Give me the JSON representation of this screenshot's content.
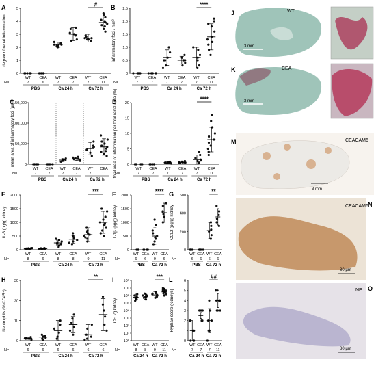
{
  "figure": {
    "image_panels": [
      {
        "letter": "J",
        "label": "WT",
        "scale": "3 mm"
      },
      {
        "letter": "K",
        "label": "CEA",
        "scale": "3 mm"
      },
      {
        "letter": "M",
        "label": "CEACAM6",
        "scale": "3 mm"
      },
      {
        "letter": "N",
        "label": "CEACAM6",
        "scale": "80 µm"
      },
      {
        "letter": "O",
        "label": "NE",
        "scale": "80 µm"
      }
    ]
  },
  "chart_data": [
    {
      "letter": "A",
      "type": "scatter",
      "ylabel": "degree of renal inflammation",
      "ylim": [
        0,
        5
      ],
      "yticks": [
        "0",
        "1",
        "2",
        "3",
        "4",
        "5"
      ],
      "ticklabels": [
        "WT",
        "CEA",
        "WT",
        "CEA",
        "WT",
        "CEA"
      ],
      "groups": [
        "PBS",
        "Ca 24 h",
        "Ca 72 h"
      ],
      "n": [
        "7",
        "6",
        "7",
        "7",
        "7",
        "11"
      ],
      "n_prefix": "N=",
      "means": [
        0,
        0,
        2.2,
        3,
        2.7,
        3.9
      ],
      "errors": [
        0,
        0,
        0.2,
        0.5,
        0.3,
        0.5
      ],
      "points": [
        [
          0,
          0,
          0,
          0,
          0,
          0,
          0
        ],
        [
          0,
          0,
          0,
          0,
          0,
          0
        ],
        [
          2.0,
          2.1,
          2.2,
          2.2,
          2.3,
          2.4,
          2.1
        ],
        [
          2.5,
          2.6,
          3.0,
          3.1,
          3.4,
          3.5,
          2.9
        ],
        [
          2.5,
          2.6,
          2.7,
          2.8,
          2.9,
          2.7,
          2.6
        ],
        [
          3.2,
          3.4,
          3.6,
          3.8,
          4.0,
          4.1,
          4.3,
          4.5,
          3.7,
          3.9,
          4.6
        ]
      ],
      "sig": [
        {
          "label": "#",
          "from": 4,
          "to": 5
        }
      ]
    },
    {
      "letter": "B",
      "type": "scatter",
      "ylabel": "inflammatory foci / mm²",
      "ylim": [
        0,
        2.5
      ],
      "yticks": [
        "0",
        "0.5",
        "1.0",
        "1.5",
        "2.0",
        "2.5"
      ],
      "ticklabels": [
        "WT",
        "CEA",
        "WT",
        "CEA",
        "WT",
        "CEA"
      ],
      "groups": [
        "PBS",
        "Ca 24 h",
        "Ca 72 h"
      ],
      "n": [
        "7",
        "7",
        "7",
        "7",
        "7",
        "11"
      ],
      "n_prefix": "N=",
      "means": [
        0,
        0,
        0.6,
        0.5,
        0.6,
        1.4
      ],
      "errors": [
        0,
        0,
        0.3,
        0.15,
        0.4,
        0.5
      ],
      "points": [
        [
          0,
          0,
          0,
          0,
          0,
          0,
          0
        ],
        [
          0,
          0,
          0,
          0,
          0,
          0,
          0
        ],
        [
          0.2,
          0.3,
          0.5,
          0.6,
          0.8,
          1.0,
          0.5
        ],
        [
          0.3,
          0.4,
          0.5,
          0.5,
          0.6,
          0.7,
          0.5
        ],
        [
          0.2,
          0.3,
          0.5,
          0.6,
          0.7,
          0.9,
          1.0
        ],
        [
          0.7,
          0.9,
          1.1,
          1.3,
          1.4,
          1.6,
          1.8,
          1.9,
          2.0,
          2.1,
          1.2
        ]
      ],
      "sig": [
        {
          "label": "****",
          "from": 4,
          "to": 5
        }
      ]
    },
    {
      "letter": "C",
      "type": "scatter",
      "ylabel": "mean area of inflammatory foci (µm²)",
      "ylim": [
        0,
        150000
      ],
      "yticks": [
        "0",
        "50,000",
        "100,000",
        "150,000"
      ],
      "ticklabels": [
        "WT",
        "CEA",
        "WT",
        "CEA",
        "WT",
        "CEA"
      ],
      "groups": [
        "PBS",
        "Ca 24 h",
        "Ca 72 h"
      ],
      "n": [
        "7",
        "7",
        "7",
        "7",
        "7",
        "11"
      ],
      "n_prefix": "N=",
      "means": [
        0,
        0,
        10000,
        13000,
        38000,
        42000
      ],
      "errors": [
        0,
        0,
        3000,
        4000,
        15000,
        20000
      ],
      "points": [
        [
          0,
          0,
          0,
          0,
          0,
          0,
          0
        ],
        [
          0,
          0,
          0,
          0,
          0,
          0,
          0
        ],
        [
          6000,
          8000,
          9000,
          10000,
          12000,
          14000,
          11000
        ],
        [
          8000,
          10000,
          12000,
          14000,
          16000,
          18000,
          13000
        ],
        [
          20000,
          28000,
          35000,
          40000,
          45000,
          55000,
          42000
        ],
        [
          20000,
          25000,
          30000,
          38000,
          42000,
          50000,
          55000,
          60000,
          70000,
          32000,
          45000
        ]
      ],
      "sig": []
    },
    {
      "letter": "D",
      "type": "scatter",
      "ylabel": "total area of inflammation per total renal area (%)",
      "ylim": [
        0,
        20
      ],
      "yticks": [
        "0",
        "5",
        "10",
        "15",
        "20"
      ],
      "ticklabels": [
        "WT",
        "CEA",
        "WT",
        "CEA",
        "WT",
        "CEA"
      ],
      "groups": [
        "PBS",
        "Ca 24 h",
        "Ca 72 h"
      ],
      "n": [
        "7",
        "7",
        "7",
        "7",
        "7",
        "11"
      ],
      "n_prefix": "N=",
      "means": [
        0,
        0,
        0.5,
        0.6,
        1.5,
        8
      ],
      "errors": [
        0,
        0,
        0.3,
        0.4,
        1.5,
        4
      ],
      "points": [
        [
          0,
          0,
          0,
          0,
          0,
          0,
          0
        ],
        [
          0,
          0,
          0,
          0,
          0,
          0,
          0
        ],
        [
          0.2,
          0.3,
          0.5,
          0.6,
          0.8,
          0.4,
          0.5
        ],
        [
          0.3,
          0.5,
          0.6,
          0.8,
          1.0,
          0.4,
          0.6
        ],
        [
          0.5,
          1.0,
          1.2,
          1.5,
          2.0,
          3.0,
          4.0
        ],
        [
          3,
          4,
          5,
          6,
          7,
          8,
          9,
          10,
          12,
          14,
          16
        ]
      ],
      "sig": [
        {
          "label": "****",
          "from": 4,
          "to": 5
        }
      ]
    },
    {
      "letter": "E",
      "type": "scatter",
      "ylabel": "IL-6 (pg/g) kidney",
      "ylim": [
        0,
        2000
      ],
      "yticks": [
        "0",
        "500",
        "1000",
        "1500",
        "2000"
      ],
      "ticklabels": [
        "WT",
        "CEA",
        "WT",
        "CEA",
        "WT",
        "CEA"
      ],
      "groups": [
        "PBS",
        "Ca 24 h",
        "Ca 72 h"
      ],
      "n": [
        "8",
        "6",
        "8",
        "8",
        "9",
        "11"
      ],
      "n_prefix": "N=",
      "means": [
        40,
        40,
        250,
        380,
        550,
        1000
      ],
      "errors": [
        20,
        20,
        100,
        150,
        250,
        400
      ],
      "points": [
        [
          20,
          30,
          40,
          50,
          60,
          30,
          40,
          50
        ],
        [
          20,
          30,
          40,
          50,
          60,
          40
        ],
        [
          100,
          150,
          200,
          250,
          300,
          350,
          400,
          220
        ],
        [
          200,
          250,
          300,
          350,
          400,
          450,
          500,
          600
        ],
        [
          300,
          400,
          450,
          500,
          550,
          600,
          700,
          800,
          650
        ],
        [
          500,
          600,
          700,
          800,
          900,
          1000,
          1100,
          1200,
          1400,
          1500,
          950
        ]
      ],
      "sig": [
        {
          "label": "***",
          "from": 4,
          "to": 5
        }
      ]
    },
    {
      "letter": "F",
      "type": "scatter",
      "ylabel": "IL-1β (pg/g) kidney",
      "ylim": [
        0,
        2000
      ],
      "yticks": [
        "0",
        "500",
        "1000",
        "1500",
        "2000"
      ],
      "ticklabels": [
        "WT",
        "CEA",
        "WT",
        "CEA"
      ],
      "groups": [
        "PBS",
        "Ca 72 h"
      ],
      "n": [
        "6",
        "6",
        "9",
        "6"
      ],
      "n_prefix": "N=",
      "means": [
        0,
        0,
        500,
        1350
      ],
      "errors": [
        0,
        0,
        300,
        350
      ],
      "points": [
        [
          0,
          0,
          0,
          0,
          0,
          0
        ],
        [
          0,
          0,
          0,
          0,
          0,
          0
        ],
        [
          200,
          300,
          400,
          450,
          500,
          600,
          700,
          900,
          1100
        ],
        [
          1000,
          1200,
          1300,
          1400,
          1600,
          1700
        ]
      ],
      "sig": [
        {
          "label": "****",
          "from": 2,
          "to": 3
        }
      ]
    },
    {
      "letter": "G",
      "type": "scatter",
      "ylabel": "CCL2 (pg/g) kidney",
      "ylim": [
        0,
        600
      ],
      "yticks": [
        "0",
        "200",
        "400",
        "600"
      ],
      "ticklabels": [
        "WT",
        "CEA",
        "WT",
        "CEA"
      ],
      "groups": [
        "PBS",
        "Ca 72 h"
      ],
      "n": [
        "6",
        "6",
        "6",
        "6"
      ],
      "n_prefix": "N=",
      "means": [
        0,
        0,
        210,
        360
      ],
      "errors": [
        0,
        0,
        90,
        90
      ],
      "points": [
        [
          0,
          0,
          0,
          0,
          0,
          0
        ],
        [
          0,
          0,
          0,
          0,
          0,
          0
        ],
        [
          120,
          160,
          200,
          220,
          260,
          300
        ],
        [
          260,
          300,
          340,
          380,
          420,
          480
        ]
      ],
      "sig": [
        {
          "label": "**",
          "from": 2,
          "to": 3
        }
      ]
    },
    {
      "letter": "H",
      "type": "scatter",
      "ylabel": "Neutrophils (% CD45⁺)",
      "ylim": [
        0,
        30
      ],
      "yticks": [
        "0",
        "10",
        "20",
        "30"
      ],
      "ticklabels": [
        "WT",
        "CEA",
        "WT",
        "CEA",
        "WT",
        "CEA"
      ],
      "groups": [
        "PBS",
        "Ca 24 h",
        "Ca 72 h"
      ],
      "n": [
        "6",
        "6",
        "6",
        "6",
        "6",
        "6"
      ],
      "n_prefix": "N=",
      "means": [
        1.2,
        1.8,
        5,
        8,
        3,
        13
      ],
      "errors": [
        0.5,
        1,
        5,
        4,
        5,
        8
      ],
      "points": [
        [
          0.5,
          1,
          1.2,
          1.5,
          1.8,
          1
        ],
        [
          0.5,
          1,
          2,
          2.5,
          3,
          1.5
        ],
        [
          1,
          2,
          4,
          6,
          8,
          10
        ],
        [
          3,
          5,
          7,
          9,
          11,
          13
        ],
        [
          0.5,
          1,
          2,
          3,
          6,
          8
        ],
        [
          5,
          8,
          12,
          15,
          18,
          22
        ]
      ],
      "sig": [
        {
          "label": "**",
          "from": 4,
          "to": 5
        }
      ]
    },
    {
      "letter": "I",
      "type": "scatter",
      "ylabel": "CFU/g kidney",
      "yscale": "log",
      "ylim": [
        1,
        100000000
      ],
      "yticks": [
        "10⁰",
        "10¹",
        "10²",
        "10³",
        "10⁴",
        "10⁵",
        "10⁶",
        "10⁷",
        "10⁸"
      ],
      "ticklabels": [
        "WT",
        "CEA",
        "WT",
        "CEA"
      ],
      "groups": [
        "Ca 24 h",
        "Ca 72 h"
      ],
      "n": [
        "8",
        "8",
        "9",
        "11"
      ],
      "n_prefix": "N=",
      "means": [
        600000,
        800000,
        1200000,
        3000000
      ],
      "errors": [
        0.4,
        0.4,
        0.4,
        0.5
      ],
      "points": [
        [
          200000,
          300000,
          500000,
          600000,
          800000,
          1000000,
          1500000,
          400000
        ],
        [
          300000,
          500000,
          700000,
          900000,
          1200000,
          1800000,
          600000,
          1000000
        ],
        [
          500000,
          700000,
          1000000,
          1200000,
          1500000,
          2000000,
          3000000,
          800000,
          1800000
        ],
        [
          1000000,
          1500000,
          2000000,
          3000000,
          4000000,
          5000000,
          8000000,
          10000000,
          2500000,
          6000000,
          4500000
        ]
      ],
      "sig": [
        {
          "label": "***",
          "from": 2,
          "to": 3
        }
      ]
    },
    {
      "letter": "L",
      "type": "scatter",
      "ylabel": "Hyphae score (kidneys)",
      "ylim": [
        0,
        6
      ],
      "yticks": [
        "0",
        "1",
        "2",
        "3",
        "4",
        "5",
        "6"
      ],
      "ticklabels": [
        "WT",
        "CEA",
        "WT",
        "CEA"
      ],
      "groups": [
        "Ca 24 h",
        "Ca 72 h"
      ],
      "n": [
        "7",
        "7",
        "7",
        "11"
      ],
      "n_prefix": "N=",
      "means": [
        1,
        2.5,
        2,
        4
      ],
      "errors": [
        1,
        0.3,
        1.2,
        0.7
      ],
      "points": [
        [
          0,
          0,
          0,
          1,
          1,
          2,
          2
        ],
        [
          2,
          2,
          3,
          3,
          3,
          2,
          3
        ],
        [
          0,
          1,
          1,
          2,
          3,
          4,
          2
        ],
        [
          3,
          3,
          4,
          4,
          4,
          4,
          5,
          5,
          5,
          4,
          3
        ]
      ],
      "sig": [
        {
          "label": "##",
          "from": 2,
          "to": 3
        }
      ]
    }
  ]
}
